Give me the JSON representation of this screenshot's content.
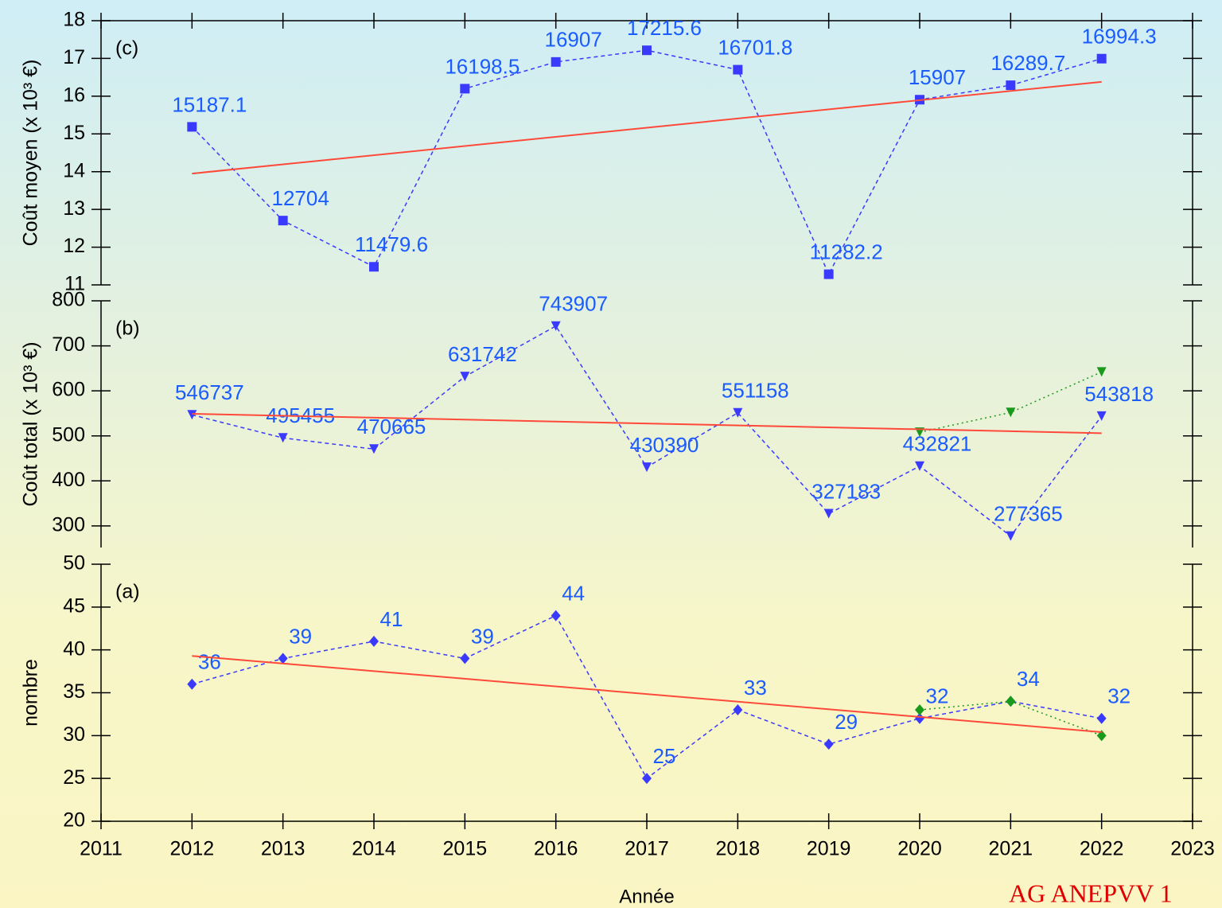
{
  "chart_data": [
    {
      "type": "line",
      "panel": "(c)",
      "ylabel": "Coût moyen (x 10³ €)",
      "xlim": [
        2011,
        2023
      ],
      "ylim": [
        11,
        18
      ],
      "yticks": [
        11,
        12,
        13,
        14,
        15,
        16,
        17,
        18
      ],
      "series": [
        {
          "color": "#3a3aff",
          "linestyle": "dashed",
          "marker": "square",
          "x": [
            2012,
            2013,
            2014,
            2015,
            2016,
            2017,
            2018,
            2019,
            2020,
            2021,
            2022
          ],
          "values": [
            15.1871,
            12.704,
            11.4796,
            16.1985,
            16.907,
            17.2156,
            16.7018,
            11.2822,
            15.907,
            16.2897,
            16.9943
          ],
          "value_labels": [
            "15187.1",
            "12704",
            "11479.6",
            "16198.5",
            "16907",
            "17215.6",
            "16701.8",
            "11282.2",
            "15907",
            "16289.7",
            "16994.3"
          ]
        },
        {
          "color": "#ff4a3a",
          "linestyle": "solid",
          "x": [
            2012,
            2022
          ],
          "values": [
            13.95,
            16.38
          ]
        }
      ]
    },
    {
      "type": "line",
      "panel": "(b)",
      "ylabel": "Coût total  (x 10³ €)",
      "xlim": [
        2011,
        2023
      ],
      "ylim": [
        252,
        800
      ],
      "yticks": [
        300,
        400,
        500,
        600,
        700,
        800
      ],
      "series": [
        {
          "color": "#3a3aff",
          "linestyle": "dashed",
          "marker": "triangle-down",
          "x": [
            2012,
            2013,
            2014,
            2015,
            2016,
            2017,
            2018,
            2019,
            2020,
            2021,
            2022
          ],
          "values": [
            546.737,
            495.455,
            470.665,
            631.742,
            743.907,
            430.39,
            551.158,
            327.183,
            432.821,
            277.365,
            543.818
          ],
          "value_labels": [
            "546737",
            "495455",
            "470665",
            "631742",
            "743907",
            "430390",
            "551158",
            "327183",
            "432821",
            "277365",
            "543818"
          ]
        },
        {
          "color": "#1a9a1a",
          "linestyle": "dotted",
          "marker": "triangle-down",
          "x": [
            2020,
            2021,
            2022
          ],
          "values": [
            508,
            552,
            642
          ]
        },
        {
          "color": "#ff4a3a",
          "linestyle": "solid",
          "x": [
            2012,
            2022
          ],
          "values": [
            549,
            506
          ]
        }
      ]
    },
    {
      "type": "line",
      "panel": "(a)",
      "ylabel": "nombre",
      "xlabel": "Année",
      "xlim": [
        2011,
        2023
      ],
      "xticks": [
        2011,
        2012,
        2013,
        2014,
        2015,
        2016,
        2017,
        2018,
        2019,
        2020,
        2021,
        2022,
        2023
      ],
      "ylim": [
        20,
        50
      ],
      "yticks": [
        20,
        25,
        30,
        35,
        40,
        45,
        50
      ],
      "series": [
        {
          "color": "#3a3aff",
          "linestyle": "dashed",
          "marker": "diamond",
          "x": [
            2012,
            2013,
            2014,
            2015,
            2016,
            2017,
            2018,
            2019,
            2020,
            2021,
            2022
          ],
          "values": [
            36,
            39,
            41,
            39,
            44,
            25,
            33,
            29,
            32,
            34,
            32
          ],
          "value_labels": [
            "36",
            "39",
            "41",
            "39",
            "44",
            "25",
            "33",
            "29",
            "32",
            "34",
            "32"
          ]
        },
        {
          "color": "#1a9a1a",
          "linestyle": "dotted",
          "marker": "diamond",
          "x": [
            2020,
            2021,
            2022
          ],
          "values": [
            33,
            34,
            30
          ]
        },
        {
          "color": "#ff4a3a",
          "linestyle": "solid",
          "x": [
            2012,
            2022
          ],
          "values": [
            39.3,
            30.4
          ]
        }
      ]
    }
  ],
  "footer": "AG ANEPVV 1"
}
